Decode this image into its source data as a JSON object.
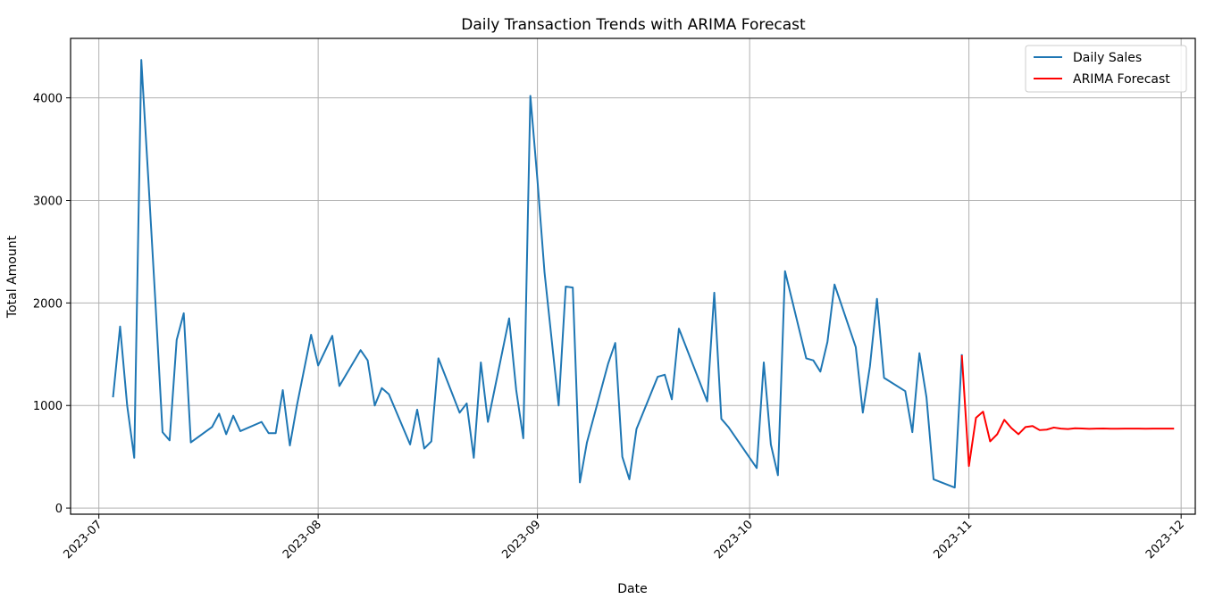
{
  "chart_data": {
    "type": "line",
    "title": "Daily Transaction Trends with ARIMA Forecast",
    "xlabel": "Date",
    "ylabel": "Total Amount",
    "xlim": [
      "2023-06-27",
      "2023-12-03"
    ],
    "ylim": [
      -60,
      4580
    ],
    "x_ticks": [
      "2023-07-01",
      "2023-08-01",
      "2023-09-01",
      "2023-10-01",
      "2023-11-01",
      "2023-12-01"
    ],
    "x_tick_labels": [
      "2023-07",
      "2023-08",
      "2023-09",
      "2023-10",
      "2023-11",
      "2023-12"
    ],
    "y_ticks": [
      0,
      1000,
      2000,
      3000,
      4000
    ],
    "grid": true,
    "legend_position": "top-right",
    "series": [
      {
        "name": "Daily Sales",
        "color": "#1f77b4",
        "points": [
          [
            "2023-07-03",
            1080
          ],
          [
            "2023-07-04",
            1770
          ],
          [
            "2023-07-05",
            1000
          ],
          [
            "2023-07-06",
            490
          ],
          [
            "2023-07-07",
            4370
          ],
          [
            "2023-07-08",
            3200
          ],
          [
            "2023-07-09",
            2000
          ],
          [
            "2023-07-10",
            740
          ],
          [
            "2023-07-11",
            660
          ],
          [
            "2023-07-12",
            1640
          ],
          [
            "2023-07-13",
            1900
          ],
          [
            "2023-07-14",
            640
          ],
          [
            "2023-07-17",
            790
          ],
          [
            "2023-07-18",
            920
          ],
          [
            "2023-07-19",
            720
          ],
          [
            "2023-07-20",
            900
          ],
          [
            "2023-07-21",
            750
          ],
          [
            "2023-07-24",
            840
          ],
          [
            "2023-07-25",
            730
          ],
          [
            "2023-07-26",
            730
          ],
          [
            "2023-07-27",
            1150
          ],
          [
            "2023-07-28",
            610
          ],
          [
            "2023-07-29",
            1000
          ],
          [
            "2023-07-31",
            1690
          ],
          [
            "2023-08-01",
            1390
          ],
          [
            "2023-08-03",
            1680
          ],
          [
            "2023-08-04",
            1190
          ],
          [
            "2023-08-07",
            1540
          ],
          [
            "2023-08-08",
            1440
          ],
          [
            "2023-08-09",
            1000
          ],
          [
            "2023-08-10",
            1170
          ],
          [
            "2023-08-11",
            1110
          ],
          [
            "2023-08-14",
            620
          ],
          [
            "2023-08-15",
            960
          ],
          [
            "2023-08-16",
            580
          ],
          [
            "2023-08-17",
            650
          ],
          [
            "2023-08-18",
            1460
          ],
          [
            "2023-08-21",
            930
          ],
          [
            "2023-08-22",
            1020
          ],
          [
            "2023-08-23",
            490
          ],
          [
            "2023-08-24",
            1420
          ],
          [
            "2023-08-25",
            840
          ],
          [
            "2023-08-28",
            1850
          ],
          [
            "2023-08-29",
            1150
          ],
          [
            "2023-08-30",
            680
          ],
          [
            "2023-08-31",
            4020
          ],
          [
            "2023-09-01",
            3200
          ],
          [
            "2023-09-02",
            2300
          ],
          [
            "2023-09-04",
            1000
          ],
          [
            "2023-09-05",
            2160
          ],
          [
            "2023-09-06",
            2150
          ],
          [
            "2023-09-07",
            250
          ],
          [
            "2023-09-08",
            640
          ],
          [
            "2023-09-11",
            1410
          ],
          [
            "2023-09-12",
            1610
          ],
          [
            "2023-09-13",
            500
          ],
          [
            "2023-09-14",
            280
          ],
          [
            "2023-09-15",
            770
          ],
          [
            "2023-09-18",
            1280
          ],
          [
            "2023-09-19",
            1300
          ],
          [
            "2023-09-20",
            1060
          ],
          [
            "2023-09-21",
            1750
          ],
          [
            "2023-09-25",
            1040
          ],
          [
            "2023-09-26",
            2100
          ],
          [
            "2023-09-27",
            870
          ],
          [
            "2023-09-28",
            790
          ],
          [
            "2023-10-02",
            390
          ],
          [
            "2023-10-03",
            1420
          ],
          [
            "2023-10-04",
            620
          ],
          [
            "2023-10-05",
            320
          ],
          [
            "2023-10-06",
            2310
          ],
          [
            "2023-10-09",
            1460
          ],
          [
            "2023-10-10",
            1440
          ],
          [
            "2023-10-11",
            1330
          ],
          [
            "2023-10-12",
            1620
          ],
          [
            "2023-10-13",
            2180
          ],
          [
            "2023-10-16",
            1570
          ],
          [
            "2023-10-17",
            930
          ],
          [
            "2023-10-18",
            1380
          ],
          [
            "2023-10-19",
            2040
          ],
          [
            "2023-10-20",
            1270
          ],
          [
            "2023-10-23",
            1140
          ],
          [
            "2023-10-24",
            740
          ],
          [
            "2023-10-25",
            1510
          ],
          [
            "2023-10-26",
            1080
          ],
          [
            "2023-10-27",
            280
          ],
          [
            "2023-10-30",
            200
          ],
          [
            "2023-10-31",
            1500
          ]
        ]
      },
      {
        "name": "ARIMA Forecast",
        "color": "#ff0000",
        "points": [
          [
            "2023-10-31",
            1490
          ],
          [
            "2023-11-01",
            410
          ],
          [
            "2023-11-02",
            880
          ],
          [
            "2023-11-03",
            940
          ],
          [
            "2023-11-04",
            650
          ],
          [
            "2023-11-05",
            720
          ],
          [
            "2023-11-06",
            860
          ],
          [
            "2023-11-07",
            780
          ],
          [
            "2023-11-08",
            720
          ],
          [
            "2023-11-09",
            790
          ],
          [
            "2023-11-10",
            800
          ],
          [
            "2023-11-11",
            760
          ],
          [
            "2023-11-12",
            765
          ],
          [
            "2023-11-13",
            785
          ],
          [
            "2023-11-14",
            775
          ],
          [
            "2023-11-15",
            770
          ],
          [
            "2023-11-16",
            778
          ],
          [
            "2023-11-17",
            776
          ],
          [
            "2023-11-18",
            772
          ],
          [
            "2023-11-19",
            775
          ],
          [
            "2023-11-20",
            776
          ],
          [
            "2023-11-21",
            774
          ],
          [
            "2023-11-22",
            774
          ],
          [
            "2023-11-23",
            775
          ],
          [
            "2023-11-24",
            775
          ],
          [
            "2023-11-25",
            775
          ],
          [
            "2023-11-26",
            774
          ],
          [
            "2023-11-27",
            775
          ],
          [
            "2023-11-28",
            775
          ],
          [
            "2023-11-29",
            775
          ],
          [
            "2023-11-30",
            775
          ]
        ]
      }
    ]
  }
}
